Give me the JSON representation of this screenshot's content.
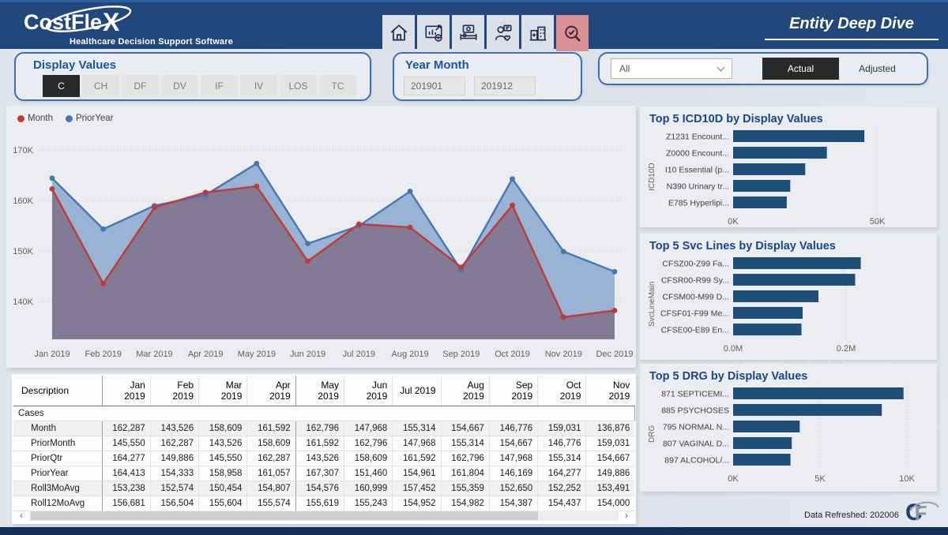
{
  "app": {
    "logo_prefix": "CostFle",
    "logo_x": "X",
    "tagline": "Healthcare Decision Support Software",
    "page_title": "Entity Deep Dive"
  },
  "nav_icons": [
    {
      "name": "home",
      "active": false
    },
    {
      "name": "analytics-report",
      "active": false
    },
    {
      "name": "patient-room",
      "active": false
    },
    {
      "name": "clinician-review",
      "active": false
    },
    {
      "name": "facility",
      "active": false
    },
    {
      "name": "entity-search",
      "active": true
    }
  ],
  "filters": {
    "display_values": {
      "title": "Display Values",
      "options": [
        "C",
        "CH",
        "DF",
        "DV",
        "IF",
        "IV",
        "LOS",
        "TC"
      ],
      "selected": "C"
    },
    "year_month": {
      "title": "Year Month",
      "from": "201901",
      "to": "201912"
    },
    "entity_dropdown": {
      "value": "All"
    },
    "scenario_toggle": {
      "options": [
        "Actual",
        "Adjusted"
      ],
      "selected": "Actual"
    }
  },
  "colors": {
    "header_navy": "#21477c",
    "accent_blue": "#1d55a5",
    "bar_navy": "#1f4e79",
    "month_red": "#bf3a38",
    "prioryear_blue": "#4577b4",
    "selected_button": "#27292b",
    "active_tile_pink": "#d99195"
  },
  "chart_data": [
    {
      "type": "area",
      "title": "Cases Trend",
      "x": [
        "Jan 2019",
        "Feb 2019",
        "Mar 2019",
        "Apr 2019",
        "May 2019",
        "Jun 2019",
        "Jul 2019",
        "Aug 2019",
        "Sep 2019",
        "Oct 2019",
        "Nov 2019",
        "Dec 2019"
      ],
      "series": [
        {
          "name": "Month",
          "color": "#bf3a38",
          "values": [
            162287,
            143526,
            158609,
            161592,
            162796,
            147968,
            155314,
            154667,
            146776,
            159031,
            136876,
            138200
          ]
        },
        {
          "name": "PriorYear",
          "color": "#4577b4",
          "values": [
            164413,
            154333,
            158958,
            161057,
            167307,
            151460,
            154961,
            161804,
            146169,
            164277,
            149886,
            145900
          ]
        }
      ],
      "ylim": [
        135000,
        171500
      ],
      "yticks": [
        {
          "label": "140K",
          "value": 140000
        },
        {
          "label": "150K",
          "value": 150000
        },
        {
          "label": "160K",
          "value": 160000
        },
        {
          "label": "170K",
          "value": 170000
        }
      ],
      "grid": "dotted-horizontal",
      "legend_position": "top-left"
    },
    {
      "type": "bar",
      "title": "Top 5 ICD10D by Display Values",
      "ylabel": "ICD10D",
      "categories": [
        "Z1231 Encount...",
        "Z0000 Encount...",
        "I10 Essential (p...",
        "N390 Urinary tr...",
        "E785 Hyperlipi..."
      ],
      "values": [
        45500,
        32500,
        25000,
        19800,
        18600
      ],
      "xlim": [
        0,
        66000
      ],
      "ticks": [
        {
          "label": "0K",
          "value": 0
        },
        {
          "label": "50K",
          "value": 50000
        }
      ]
    },
    {
      "type": "bar",
      "title": "Top 5 Svc Lines by Display Values",
      "ylabel": "SvcLineMain",
      "categories": [
        "CFSZ00-Z99 Fa...",
        "CFSR00-R99 Sy...",
        "CFSM00-M99 D...",
        "CFSF01-F99 Me...",
        "CFSE00-E89 En..."
      ],
      "values": [
        0.226,
        0.216,
        0.151,
        0.123,
        0.121
      ],
      "xlim": [
        0,
        0.337
      ],
      "ticks": [
        {
          "label": "0.0M",
          "value": 0
        },
        {
          "label": "0.2M",
          "value": 0.2
        }
      ]
    },
    {
      "type": "bar",
      "title": "Top 5 DRG by Display Values",
      "ylabel": "DRG",
      "categories": [
        "871 SEPTICEMI...",
        "885 PSYCHOSES",
        "795 NORMAL N...",
        "807 VAGINAL D...",
        "897 ALCOHOL/..."
      ],
      "values": [
        9800,
        8550,
        3830,
        3370,
        3300
      ],
      "xlim": [
        0,
        10950
      ],
      "ticks": [
        {
          "label": "0K",
          "value": 0
        },
        {
          "label": "5K",
          "value": 5000
        },
        {
          "label": "10K",
          "value": 10000
        }
      ]
    }
  ],
  "table": {
    "columns": [
      "Description",
      "Jan 2019",
      "Feb 2019",
      "Mar 2019",
      "Apr 2019",
      "May 2019",
      "Jun 2019",
      "Jul 2019",
      "Aug 2019",
      "Sep 2019",
      "Oct 2019",
      "Nov 2019"
    ],
    "group_label": "Cases",
    "rows": [
      {
        "label": "Month",
        "values": [
          "162,287",
          "143,526",
          "158,609",
          "161,592",
          "162,796",
          "147,968",
          "155,314",
          "154,667",
          "146,776",
          "159,031",
          "136,876"
        ]
      },
      {
        "label": "PriorMonth",
        "values": [
          "145,550",
          "162,287",
          "143,526",
          "158,609",
          "161,592",
          "162,796",
          "147,968",
          "155,314",
          "154,667",
          "146,776",
          "159,031"
        ]
      },
      {
        "label": "PriorQtr",
        "values": [
          "164,277",
          "149,886",
          "145,550",
          "162,287",
          "143,526",
          "158,609",
          "161,592",
          "162,796",
          "147,968",
          "155,314",
          "154,667"
        ]
      },
      {
        "label": "PriorYear",
        "values": [
          "164,413",
          "154,333",
          "158,958",
          "161,057",
          "167,307",
          "151,460",
          "154,961",
          "161,804",
          "146,169",
          "164,277",
          "149,886"
        ]
      },
      {
        "label": "Roll3MoAvg",
        "values": [
          "153,238",
          "152,574",
          "150,454",
          "154,807",
          "154,576",
          "160,999",
          "157,452",
          "155,359",
          "152,650",
          "152,252",
          "153,491"
        ]
      },
      {
        "label": "Roll12MoAvg",
        "values": [
          "156,681",
          "156,504",
          "155,604",
          "155,574",
          "155,619",
          "155,243",
          "154,952",
          "154,982",
          "154,387",
          "154,437",
          "154,000"
        ]
      }
    ]
  },
  "footer": {
    "data_refreshed": "Data Refreshed: 202006",
    "logo_c": "C",
    "logo_f": "F"
  }
}
